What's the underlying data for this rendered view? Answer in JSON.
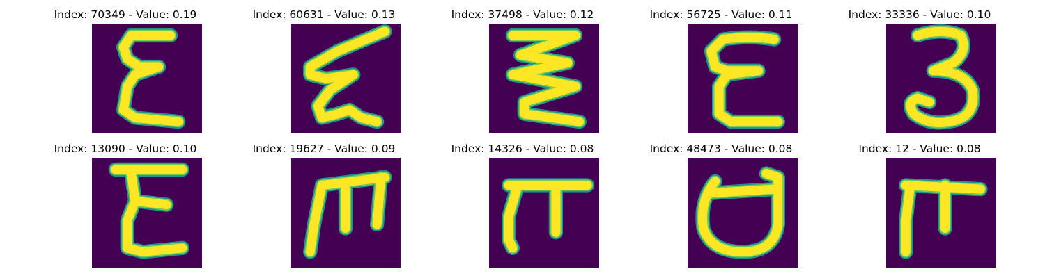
{
  "panel": {
    "background": "#440154",
    "stroke_edge": "#21918c",
    "stroke_core": "#fde725",
    "stroke_light": "#7ad151"
  },
  "items": [
    {
      "title": "Index: 70349 - Value: 0.19",
      "glyph": "script-epsilon-left"
    },
    {
      "title": "Index: 60631 - Value: 0.13",
      "glyph": "script-epsilon-slanted"
    },
    {
      "title": "Index: 37498 - Value: 0.12",
      "glyph": "zigzag-stroke"
    },
    {
      "title": "Index: 56725 - Value: 0.11",
      "glyph": "epsilon"
    },
    {
      "title": "Index: 33336 - Value: 0.10",
      "glyph": "three"
    },
    {
      "title": "Index: 13090 - Value: 0.10",
      "glyph": "letter-e"
    },
    {
      "title": "Index: 19627 - Value: 0.09",
      "glyph": "rotated-e"
    },
    {
      "title": "Index: 14326 - Value: 0.08",
      "glyph": "pi-shape"
    },
    {
      "title": "Index: 48473 - Value: 0.08",
      "glyph": "open-cup"
    },
    {
      "title": "Index: 12 - Value: 0.08",
      "glyph": "t-shape"
    }
  ]
}
